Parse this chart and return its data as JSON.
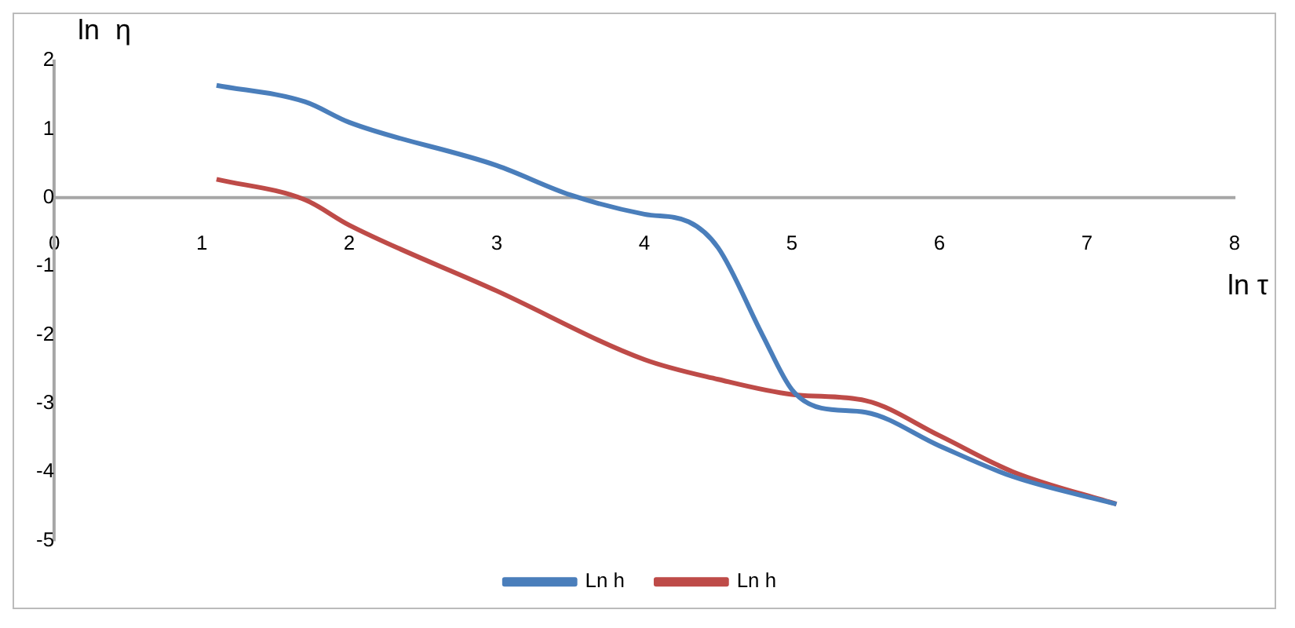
{
  "chart_data": {
    "type": "line",
    "xlabel": "ln τ",
    "ylabel": "ln  η",
    "xlim": [
      0,
      8
    ],
    "xticks": [
      0,
      1,
      2,
      3,
      4,
      5,
      6,
      7,
      8
    ],
    "ylim": [
      -5,
      2
    ],
    "yticks": [
      -5,
      -4,
      -3,
      -2,
      -1,
      0,
      1,
      2
    ],
    "grid": false,
    "legend": "bottom",
    "marker": "none",
    "series": [
      {
        "name": "Ln h",
        "color": "#4a7ebb",
        "x": [
          1.1,
          1.7,
          2,
          3,
          3.5,
          4,
          4.3,
          4.5,
          4.8,
          5,
          5.2,
          5.5,
          6,
          6.5,
          7.2
        ],
        "values": [
          1.64,
          1.4,
          1.1,
          0.47,
          0.04,
          -0.24,
          -0.35,
          -0.73,
          -2.0,
          -2.8,
          -3.07,
          -3.13,
          -3.62,
          -4.07,
          -4.47
        ]
      },
      {
        "name": "Ln h",
        "color": "#be4b48",
        "x": [
          1.1,
          1.7,
          2,
          3,
          4,
          4.5,
          5,
          5.5,
          6,
          6.5,
          7.2
        ],
        "values": [
          0.27,
          -0.03,
          -0.4,
          -1.36,
          -2.36,
          -2.65,
          -2.87,
          -2.96,
          -3.47,
          -4.0,
          -4.47
        ]
      }
    ]
  }
}
